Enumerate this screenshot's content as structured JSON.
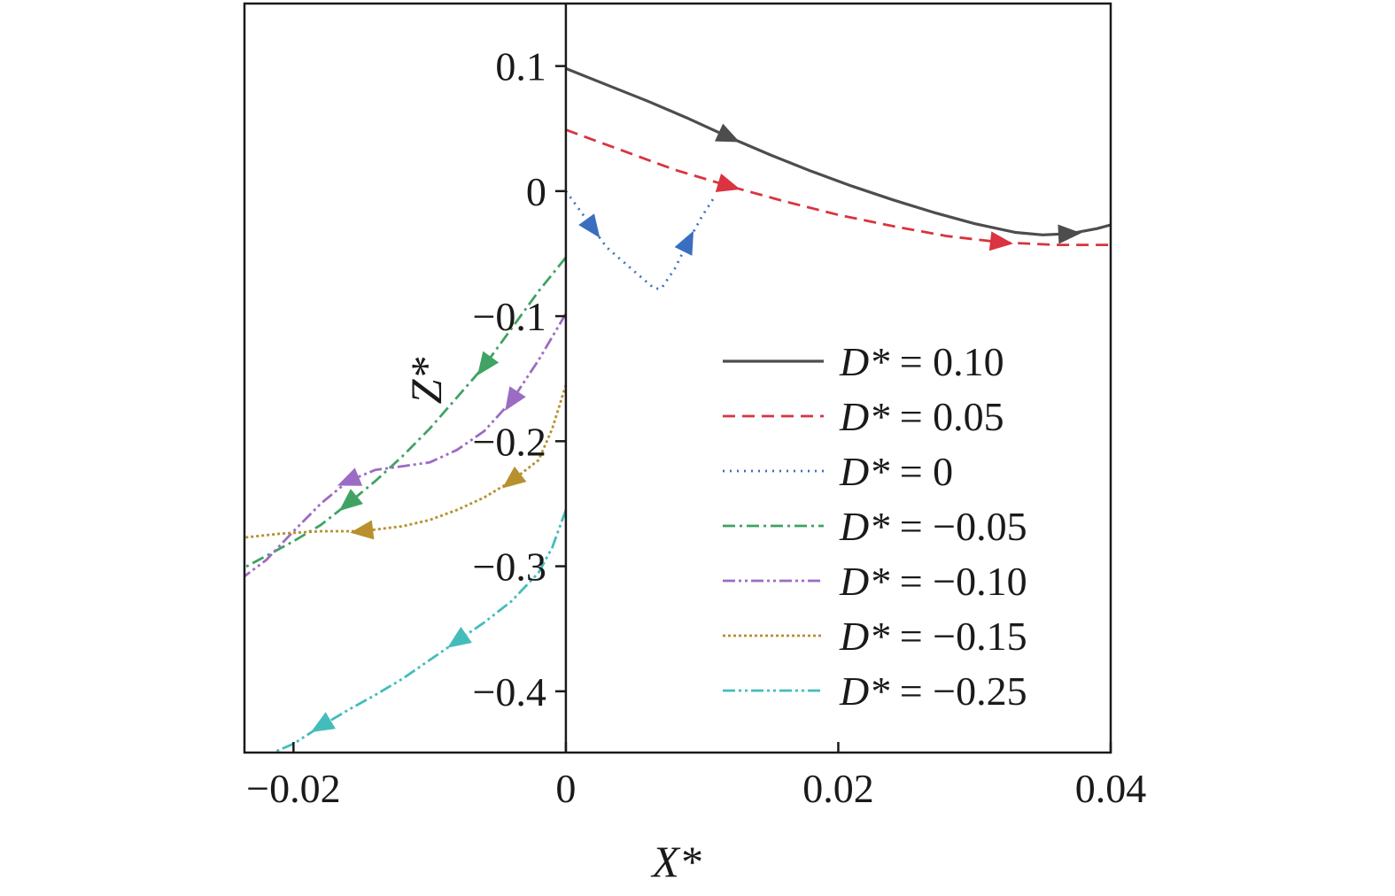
{
  "chart_data": {
    "type": "line",
    "xlabel": "X*",
    "ylabel": "Z*",
    "xlim": [
      -0.0236,
      0.04
    ],
    "ylim": [
      -0.449,
      0.15
    ],
    "xticks": [
      -0.02,
      0,
      0.02,
      0.04
    ],
    "xtick_labels": [
      "−0.02",
      "0",
      "0.02",
      "0.04"
    ],
    "yticks": [
      0.1,
      0,
      -0.1,
      -0.2,
      -0.3,
      -0.4
    ],
    "ytick_labels": [
      "0.1",
      "0",
      "−0.1",
      "−0.2",
      "−0.3",
      "−0.4"
    ],
    "grid": false,
    "legend_position": "lower-right",
    "series": [
      {
        "name": "D* = 0.10",
        "label_prefix": "D*",
        "label_value": "= 0.10",
        "color": "#4d4d4d",
        "dash": "solid",
        "x": [
          0,
          0.003,
          0.006,
          0.009,
          0.012,
          0.015,
          0.018,
          0.021,
          0.024,
          0.027,
          0.03,
          0.033,
          0.035,
          0.037,
          0.039,
          0.04
        ],
        "y": [
          0.098,
          0.085,
          0.072,
          0.058,
          0.043,
          0.029,
          0.016,
          0.004,
          -0.007,
          -0.017,
          -0.026,
          -0.033,
          -0.035,
          -0.034,
          -0.03,
          -0.027
        ],
        "arrows": [
          {
            "at": 4,
            "dir": 1
          },
          {
            "at": 13,
            "dir": 1
          }
        ]
      },
      {
        "name": "D* = 0.05",
        "label_prefix": "D*",
        "label_value": "= 0.05",
        "color": "#d9343f",
        "dash": "dashed",
        "x": [
          0,
          0.004,
          0.008,
          0.012,
          0.016,
          0.02,
          0.024,
          0.028,
          0.032,
          0.036,
          0.04
        ],
        "y": [
          0.049,
          0.033,
          0.017,
          0.004,
          -0.008,
          -0.019,
          -0.028,
          -0.036,
          -0.041,
          -0.043,
          -0.043
        ],
        "arrows": [
          {
            "at": 3,
            "dir": 1
          },
          {
            "at": 8,
            "dir": 1
          }
        ]
      },
      {
        "name": "D* = 0",
        "label_prefix": "D*",
        "label_value": "= 0",
        "color": "#3a6ec0",
        "dash": "dotted",
        "x": [
          0,
          0.001,
          0.002,
          0.003,
          0.005,
          0.0065,
          0.007,
          0.008,
          0.009,
          0.01,
          0.011
        ],
        "y": [
          0,
          -0.015,
          -0.03,
          -0.045,
          -0.064,
          -0.078,
          -0.078,
          -0.062,
          -0.04,
          -0.02,
          -0.003
        ],
        "arrows": [
          {
            "at": 2,
            "dir": 1
          },
          {
            "at": 8,
            "dir": 1
          }
        ]
      },
      {
        "name": "D* = −0.05",
        "label_prefix": "D*",
        "label_value": "= −0.05",
        "color": "#3fa364",
        "dash": "dashdot",
        "x": [
          0,
          -0.002,
          -0.004,
          -0.006,
          -0.008,
          -0.01,
          -0.012,
          -0.014,
          -0.016,
          -0.018,
          -0.02,
          -0.0236
        ],
        "y": [
          -0.053,
          -0.08,
          -0.11,
          -0.14,
          -0.165,
          -0.19,
          -0.212,
          -0.232,
          -0.25,
          -0.267,
          -0.28,
          -0.301
        ],
        "arrows": [
          {
            "at": 3,
            "dir": 1
          },
          {
            "at": 8,
            "dir": 1
          }
        ]
      },
      {
        "name": "D* = −0.10",
        "label_prefix": "D*",
        "label_value": "= −0.10",
        "color": "#9b6cc4",
        "dash": "dashdotdot",
        "x": [
          0,
          -0.002,
          -0.004,
          -0.006,
          -0.008,
          -0.01,
          -0.012,
          -0.014,
          -0.016,
          -0.018,
          -0.02,
          -0.022,
          -0.0236
        ],
        "y": [
          -0.098,
          -0.135,
          -0.168,
          -0.192,
          -0.207,
          -0.217,
          -0.22,
          -0.223,
          -0.232,
          -0.25,
          -0.272,
          -0.295,
          -0.308
        ],
        "arrows": [
          {
            "at": 2,
            "dir": 1
          },
          {
            "at": 8,
            "dir": 1
          }
        ]
      },
      {
        "name": "D* = −0.15",
        "label_prefix": "D*",
        "label_value": "= −0.15",
        "color": "#b8902e",
        "dash": "densedot",
        "x": [
          0,
          -0.001,
          -0.002,
          -0.004,
          -0.006,
          -0.008,
          -0.01,
          -0.012,
          -0.015,
          -0.018,
          -0.021,
          -0.0236
        ],
        "y": [
          -0.155,
          -0.19,
          -0.215,
          -0.232,
          -0.245,
          -0.255,
          -0.263,
          -0.268,
          -0.272,
          -0.272,
          -0.274,
          -0.277
        ],
        "arrows": [
          {
            "at": 3,
            "dir": 1
          },
          {
            "at": 8,
            "dir": 1
          }
        ]
      },
      {
        "name": "D* = −0.25",
        "label_prefix": "D*",
        "label_value": "= −0.25",
        "color": "#44bcbc",
        "dash": "dashdotdot",
        "x": [
          0,
          -0.001,
          -0.002,
          -0.004,
          -0.006,
          -0.008,
          -0.01,
          -0.012,
          -0.014,
          -0.016,
          -0.018,
          -0.02,
          -0.0215
        ],
        "y": [
          -0.255,
          -0.285,
          -0.305,
          -0.328,
          -0.345,
          -0.36,
          -0.375,
          -0.39,
          -0.403,
          -0.415,
          -0.428,
          -0.442,
          -0.449
        ],
        "arrows": [
          {
            "at": 5,
            "dir": 1
          },
          {
            "at": 10,
            "dir": 1
          }
        ]
      }
    ]
  }
}
